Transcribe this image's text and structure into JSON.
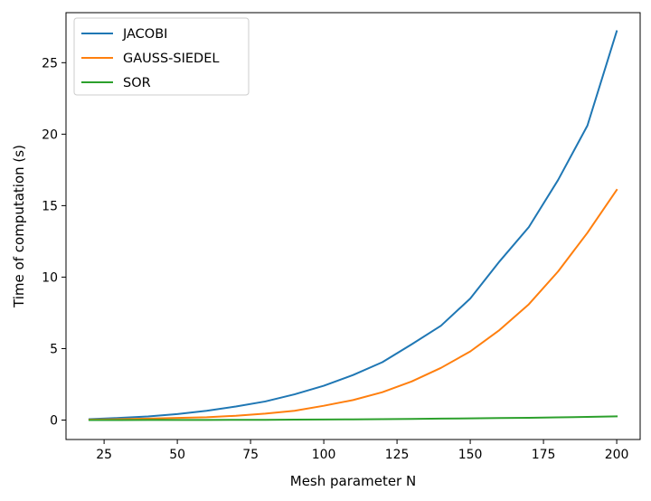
{
  "chart_data": {
    "type": "line",
    "title": "",
    "xlabel": "Mesh parameter N",
    "ylabel": "Time of computation (s)",
    "xlim": [
      12,
      208
    ],
    "ylim": [
      -1.36,
      28.5
    ],
    "xticks": [
      25,
      50,
      75,
      100,
      125,
      150,
      175,
      200
    ],
    "yticks": [
      0,
      5,
      10,
      15,
      20,
      25
    ],
    "grid": false,
    "legend_position": "top-left",
    "x": [
      20,
      30,
      40,
      50,
      60,
      70,
      80,
      90,
      100,
      110,
      120,
      130,
      140,
      150,
      160,
      170,
      180,
      190,
      200
    ],
    "series": [
      {
        "name": "JACOBI",
        "color": "#1f77b4",
        "values": [
          0.06,
          0.15,
          0.25,
          0.42,
          0.65,
          0.95,
          1.3,
          1.8,
          2.4,
          3.15,
          4.05,
          5.3,
          6.6,
          8.5,
          11.1,
          13.5,
          16.8,
          20.6,
          27.2
        ]
      },
      {
        "name": "GAUSS-SIEDEL",
        "color": "#ff7f0e",
        "values": [
          0.03,
          0.06,
          0.1,
          0.15,
          0.2,
          0.3,
          0.45,
          0.65,
          1.0,
          1.4,
          1.95,
          2.7,
          3.65,
          4.8,
          6.3,
          8.1,
          10.4,
          13.1,
          16.1
        ]
      },
      {
        "name": "SOR",
        "color": "#2ca02c",
        "values": [
          0.0,
          0.0,
          0.01,
          0.01,
          0.01,
          0.02,
          0.02,
          0.03,
          0.04,
          0.05,
          0.06,
          0.08,
          0.1,
          0.12,
          0.14,
          0.16,
          0.19,
          0.22,
          0.26
        ]
      }
    ]
  }
}
